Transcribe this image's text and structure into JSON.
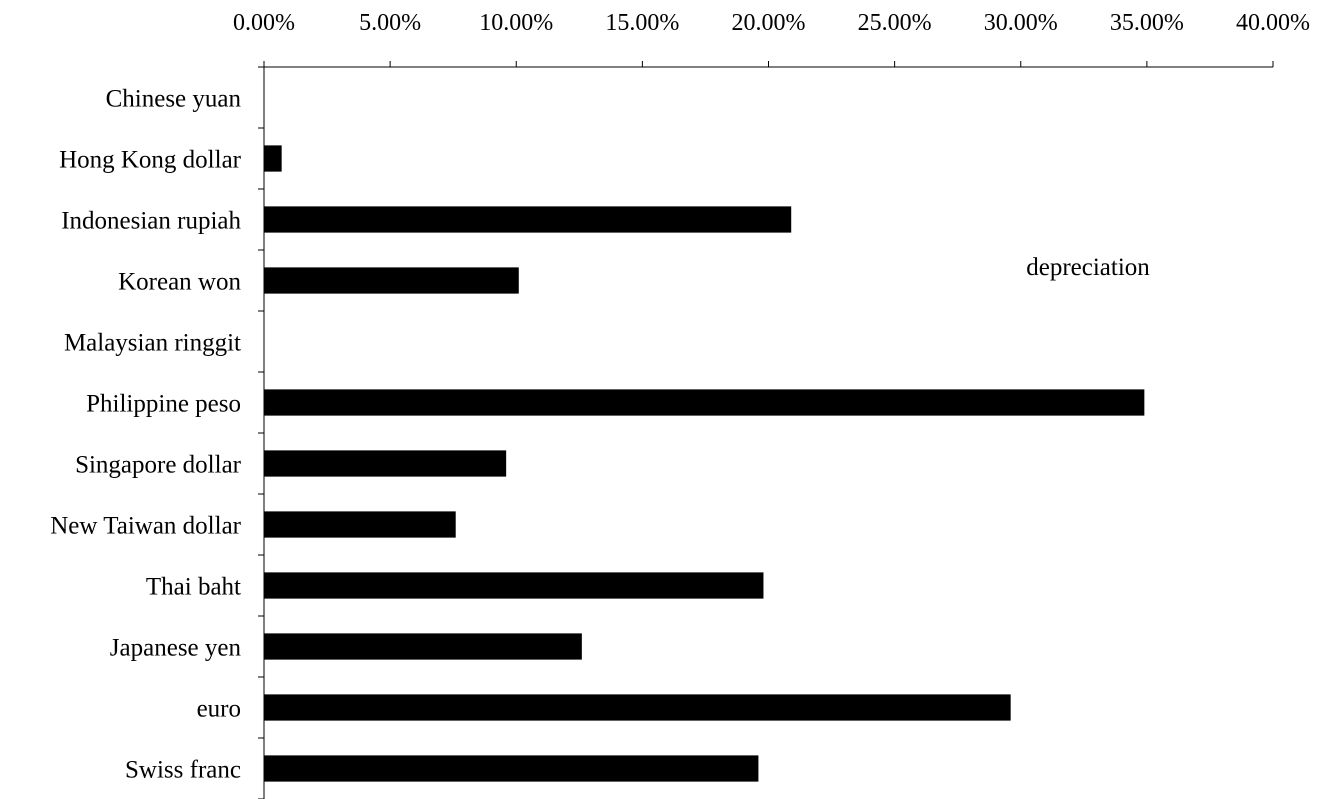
{
  "chart_data": {
    "type": "bar",
    "orientation": "horizontal",
    "title": "",
    "xlabel": "",
    "ylabel": "",
    "x_axis_position": "top",
    "grid": false,
    "xlim": [
      0,
      40
    ],
    "x_tick_labels": [
      "0.00%",
      "5.00%",
      "10.00%",
      "15.00%",
      "20.00%",
      "25.00%",
      "30.00%",
      "35.00%",
      "40.00%"
    ],
    "categories": [
      "Chinese yuan",
      "Hong Kong dollar",
      "Indonesian rupiah",
      "Korean won",
      "Malaysian ringgit",
      "Philippine peso",
      "Singapore dollar",
      "New Taiwan dollar",
      "Thai baht",
      "Japanese yen",
      "euro",
      "Swiss franc"
    ],
    "values": [
      0,
      0.7,
      20.9,
      10.1,
      0,
      34.9,
      9.6,
      7.6,
      19.8,
      12.6,
      29.6,
      19.6
    ],
    "bar_color": "#000000",
    "annotation": "depreciation"
  }
}
